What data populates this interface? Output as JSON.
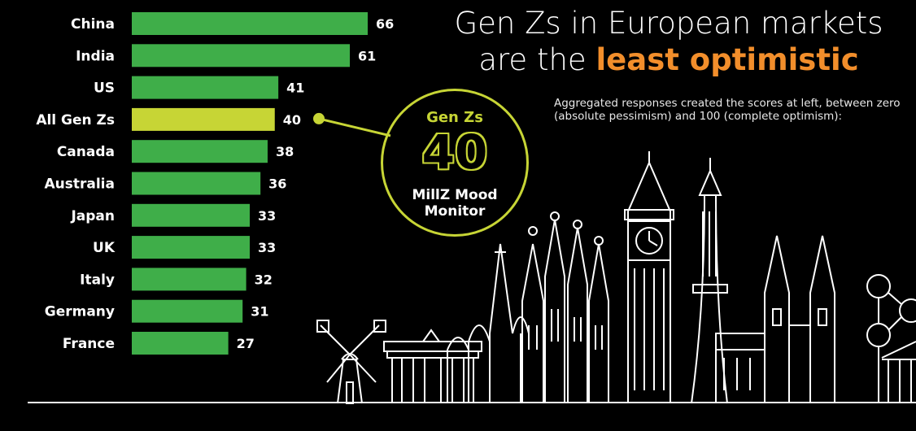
{
  "headline": {
    "line1": "Gen Zs in European markets",
    "line2_prefix": "are the ",
    "line2_accent": "least optimistic"
  },
  "subtitle": "Aggregated responses created the scores at left, between zero (absolute pessimism) and 100 (complete optimism):",
  "mood_monitor": {
    "title": "Gen Zs",
    "value": "40",
    "caption_line1": "MillZ Mood",
    "caption_line2": "Monitor"
  },
  "colors": {
    "bar": "#3fae49",
    "highlight": "#c7d535",
    "accent": "#f28e2b",
    "background": "#000000"
  },
  "chart_data": {
    "type": "bar",
    "orientation": "horizontal",
    "categories": [
      "China",
      "India",
      "US",
      "All Gen Zs",
      "Canada",
      "Australia",
      "Japan",
      "UK",
      "Italy",
      "Germany",
      "France"
    ],
    "values": [
      66,
      61,
      41,
      40,
      38,
      36,
      33,
      33,
      32,
      31,
      27
    ],
    "highlight": "All Gen Zs",
    "title": "",
    "xlabel": "",
    "ylabel": "",
    "xlim": [
      0,
      66
    ],
    "grid": false,
    "legend": "none"
  },
  "illustration": {
    "icons": [
      "windmill-icon",
      "brandenburg-gate-icon",
      "st-basils-cathedral-icon",
      "big-ben-icon",
      "eiffel-tower-icon",
      "sagrada-familia-icon",
      "prague-church-icon",
      "atomium-icon",
      "parthenon-icon"
    ]
  }
}
